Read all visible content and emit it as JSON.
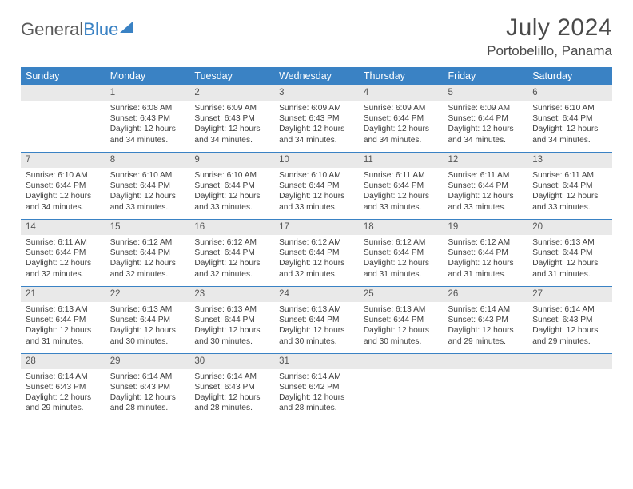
{
  "logo": {
    "text1": "General",
    "text2": "Blue"
  },
  "title": "July 2024",
  "location": "Portobelillo, Panama",
  "colors": {
    "header_bg": "#3a82c4",
    "daynum_bg": "#e9e9e9",
    "row_divider": "#3a82c4",
    "text": "#404040"
  },
  "weekdays": [
    "Sunday",
    "Monday",
    "Tuesday",
    "Wednesday",
    "Thursday",
    "Friday",
    "Saturday"
  ],
  "weeks": [
    {
      "nums": [
        "",
        "1",
        "2",
        "3",
        "4",
        "5",
        "6"
      ],
      "cells": [
        null,
        {
          "sr": "Sunrise: 6:08 AM",
          "ss": "Sunset: 6:43 PM",
          "d1": "Daylight: 12 hours",
          "d2": "and 34 minutes."
        },
        {
          "sr": "Sunrise: 6:09 AM",
          "ss": "Sunset: 6:43 PM",
          "d1": "Daylight: 12 hours",
          "d2": "and 34 minutes."
        },
        {
          "sr": "Sunrise: 6:09 AM",
          "ss": "Sunset: 6:43 PM",
          "d1": "Daylight: 12 hours",
          "d2": "and 34 minutes."
        },
        {
          "sr": "Sunrise: 6:09 AM",
          "ss": "Sunset: 6:44 PM",
          "d1": "Daylight: 12 hours",
          "d2": "and 34 minutes."
        },
        {
          "sr": "Sunrise: 6:09 AM",
          "ss": "Sunset: 6:44 PM",
          "d1": "Daylight: 12 hours",
          "d2": "and 34 minutes."
        },
        {
          "sr": "Sunrise: 6:10 AM",
          "ss": "Sunset: 6:44 PM",
          "d1": "Daylight: 12 hours",
          "d2": "and 34 minutes."
        }
      ]
    },
    {
      "nums": [
        "7",
        "8",
        "9",
        "10",
        "11",
        "12",
        "13"
      ],
      "cells": [
        {
          "sr": "Sunrise: 6:10 AM",
          "ss": "Sunset: 6:44 PM",
          "d1": "Daylight: 12 hours",
          "d2": "and 34 minutes."
        },
        {
          "sr": "Sunrise: 6:10 AM",
          "ss": "Sunset: 6:44 PM",
          "d1": "Daylight: 12 hours",
          "d2": "and 33 minutes."
        },
        {
          "sr": "Sunrise: 6:10 AM",
          "ss": "Sunset: 6:44 PM",
          "d1": "Daylight: 12 hours",
          "d2": "and 33 minutes."
        },
        {
          "sr": "Sunrise: 6:10 AM",
          "ss": "Sunset: 6:44 PM",
          "d1": "Daylight: 12 hours",
          "d2": "and 33 minutes."
        },
        {
          "sr": "Sunrise: 6:11 AM",
          "ss": "Sunset: 6:44 PM",
          "d1": "Daylight: 12 hours",
          "d2": "and 33 minutes."
        },
        {
          "sr": "Sunrise: 6:11 AM",
          "ss": "Sunset: 6:44 PM",
          "d1": "Daylight: 12 hours",
          "d2": "and 33 minutes."
        },
        {
          "sr": "Sunrise: 6:11 AM",
          "ss": "Sunset: 6:44 PM",
          "d1": "Daylight: 12 hours",
          "d2": "and 33 minutes."
        }
      ]
    },
    {
      "nums": [
        "14",
        "15",
        "16",
        "17",
        "18",
        "19",
        "20"
      ],
      "cells": [
        {
          "sr": "Sunrise: 6:11 AM",
          "ss": "Sunset: 6:44 PM",
          "d1": "Daylight: 12 hours",
          "d2": "and 32 minutes."
        },
        {
          "sr": "Sunrise: 6:12 AM",
          "ss": "Sunset: 6:44 PM",
          "d1": "Daylight: 12 hours",
          "d2": "and 32 minutes."
        },
        {
          "sr": "Sunrise: 6:12 AM",
          "ss": "Sunset: 6:44 PM",
          "d1": "Daylight: 12 hours",
          "d2": "and 32 minutes."
        },
        {
          "sr": "Sunrise: 6:12 AM",
          "ss": "Sunset: 6:44 PM",
          "d1": "Daylight: 12 hours",
          "d2": "and 32 minutes."
        },
        {
          "sr": "Sunrise: 6:12 AM",
          "ss": "Sunset: 6:44 PM",
          "d1": "Daylight: 12 hours",
          "d2": "and 31 minutes."
        },
        {
          "sr": "Sunrise: 6:12 AM",
          "ss": "Sunset: 6:44 PM",
          "d1": "Daylight: 12 hours",
          "d2": "and 31 minutes."
        },
        {
          "sr": "Sunrise: 6:13 AM",
          "ss": "Sunset: 6:44 PM",
          "d1": "Daylight: 12 hours",
          "d2": "and 31 minutes."
        }
      ]
    },
    {
      "nums": [
        "21",
        "22",
        "23",
        "24",
        "25",
        "26",
        "27"
      ],
      "cells": [
        {
          "sr": "Sunrise: 6:13 AM",
          "ss": "Sunset: 6:44 PM",
          "d1": "Daylight: 12 hours",
          "d2": "and 31 minutes."
        },
        {
          "sr": "Sunrise: 6:13 AM",
          "ss": "Sunset: 6:44 PM",
          "d1": "Daylight: 12 hours",
          "d2": "and 30 minutes."
        },
        {
          "sr": "Sunrise: 6:13 AM",
          "ss": "Sunset: 6:44 PM",
          "d1": "Daylight: 12 hours",
          "d2": "and 30 minutes."
        },
        {
          "sr": "Sunrise: 6:13 AM",
          "ss": "Sunset: 6:44 PM",
          "d1": "Daylight: 12 hours",
          "d2": "and 30 minutes."
        },
        {
          "sr": "Sunrise: 6:13 AM",
          "ss": "Sunset: 6:44 PM",
          "d1": "Daylight: 12 hours",
          "d2": "and 30 minutes."
        },
        {
          "sr": "Sunrise: 6:14 AM",
          "ss": "Sunset: 6:43 PM",
          "d1": "Daylight: 12 hours",
          "d2": "and 29 minutes."
        },
        {
          "sr": "Sunrise: 6:14 AM",
          "ss": "Sunset: 6:43 PM",
          "d1": "Daylight: 12 hours",
          "d2": "and 29 minutes."
        }
      ]
    },
    {
      "nums": [
        "28",
        "29",
        "30",
        "31",
        "",
        "",
        ""
      ],
      "cells": [
        {
          "sr": "Sunrise: 6:14 AM",
          "ss": "Sunset: 6:43 PM",
          "d1": "Daylight: 12 hours",
          "d2": "and 29 minutes."
        },
        {
          "sr": "Sunrise: 6:14 AM",
          "ss": "Sunset: 6:43 PM",
          "d1": "Daylight: 12 hours",
          "d2": "and 28 minutes."
        },
        {
          "sr": "Sunrise: 6:14 AM",
          "ss": "Sunset: 6:43 PM",
          "d1": "Daylight: 12 hours",
          "d2": "and 28 minutes."
        },
        {
          "sr": "Sunrise: 6:14 AM",
          "ss": "Sunset: 6:42 PM",
          "d1": "Daylight: 12 hours",
          "d2": "and 28 minutes."
        },
        null,
        null,
        null
      ]
    }
  ]
}
